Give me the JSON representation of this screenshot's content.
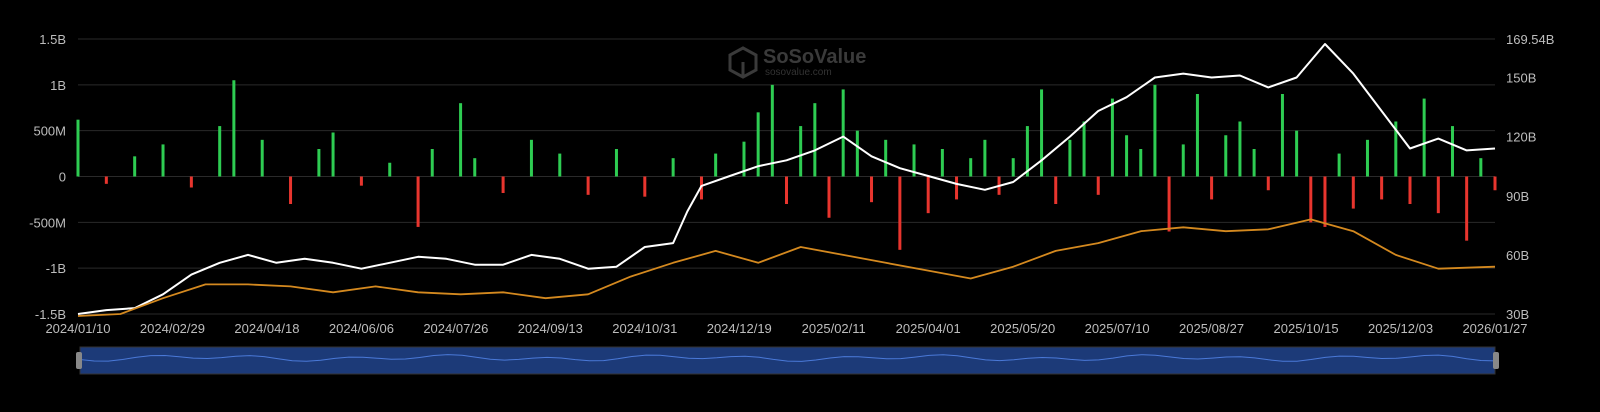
{
  "chart_data": {
    "type": "bar",
    "watermark": {
      "brand": "SoSoValue",
      "site": "sosovalue.com"
    },
    "x_tick_labels": [
      "2024/01/10",
      "2024/02/29",
      "2024/04/18",
      "2024/06/06",
      "2024/07/26",
      "2024/09/13",
      "2024/10/31",
      "2024/12/19",
      "2025/02/11",
      "2025/04/01",
      "2025/05/20",
      "2025/07/10",
      "2025/08/27",
      "2025/10/15",
      "2025/12/03",
      "2026/01/27"
    ],
    "y_left": {
      "ticks": [
        "1.5B",
        "1B",
        "500M",
        "0",
        "-500M",
        "-1B",
        "-1.5B"
      ],
      "values": [
        1.5,
        1.0,
        0.5,
        0,
        -0.5,
        -1.0,
        -1.5
      ],
      "unit": "B USD",
      "range": [
        -1.5,
        1.5
      ]
    },
    "y_right": {
      "ticks": [
        "169.54B",
        "150B",
        "120B",
        "90B",
        "60B",
        "30B"
      ],
      "values": [
        169.54,
        150,
        120,
        90,
        60,
        30
      ],
      "unit": "B USD",
      "range": [
        30,
        169.54
      ]
    },
    "series": [
      {
        "kind": "bar",
        "axis": "left",
        "color_pos": "#2ecc52",
        "color_neg": "#e8352e",
        "bars": [
          {
            "x": 0.0,
            "v": 0.62
          },
          {
            "x": 0.02,
            "v": -0.08
          },
          {
            "x": 0.04,
            "v": 0.22
          },
          {
            "x": 0.06,
            "v": 0.35
          },
          {
            "x": 0.08,
            "v": -0.12
          },
          {
            "x": 0.1,
            "v": 0.55
          },
          {
            "x": 0.11,
            "v": 1.05
          },
          {
            "x": 0.13,
            "v": 0.4
          },
          {
            "x": 0.15,
            "v": -0.3
          },
          {
            "x": 0.17,
            "v": 0.3
          },
          {
            "x": 0.18,
            "v": 0.48
          },
          {
            "x": 0.2,
            "v": -0.1
          },
          {
            "x": 0.22,
            "v": 0.15
          },
          {
            "x": 0.24,
            "v": -0.55
          },
          {
            "x": 0.25,
            "v": 0.3
          },
          {
            "x": 0.27,
            "v": 0.8
          },
          {
            "x": 0.28,
            "v": 0.2
          },
          {
            "x": 0.3,
            "v": -0.18
          },
          {
            "x": 0.32,
            "v": 0.4
          },
          {
            "x": 0.34,
            "v": 0.25
          },
          {
            "x": 0.36,
            "v": -0.2
          },
          {
            "x": 0.38,
            "v": 0.3
          },
          {
            "x": 0.4,
            "v": -0.22
          },
          {
            "x": 0.42,
            "v": 0.2
          },
          {
            "x": 0.44,
            "v": -0.25
          },
          {
            "x": 0.45,
            "v": 0.25
          },
          {
            "x": 0.47,
            "v": 0.38
          },
          {
            "x": 0.48,
            "v": 0.7
          },
          {
            "x": 0.49,
            "v": 1.0
          },
          {
            "x": 0.5,
            "v": -0.3
          },
          {
            "x": 0.51,
            "v": 0.55
          },
          {
            "x": 0.52,
            "v": 0.8
          },
          {
            "x": 0.53,
            "v": -0.45
          },
          {
            "x": 0.54,
            "v": 0.95
          },
          {
            "x": 0.55,
            "v": 0.5
          },
          {
            "x": 0.56,
            "v": -0.28
          },
          {
            "x": 0.57,
            "v": 0.4
          },
          {
            "x": 0.58,
            "v": -0.8
          },
          {
            "x": 0.59,
            "v": 0.35
          },
          {
            "x": 0.6,
            "v": -0.4
          },
          {
            "x": 0.61,
            "v": 0.3
          },
          {
            "x": 0.62,
            "v": -0.25
          },
          {
            "x": 0.63,
            "v": 0.2
          },
          {
            "x": 0.64,
            "v": 0.4
          },
          {
            "x": 0.65,
            "v": -0.2
          },
          {
            "x": 0.66,
            "v": 0.2
          },
          {
            "x": 0.67,
            "v": 0.55
          },
          {
            "x": 0.68,
            "v": 0.95
          },
          {
            "x": 0.69,
            "v": -0.3
          },
          {
            "x": 0.7,
            "v": 0.4
          },
          {
            "x": 0.71,
            "v": 0.6
          },
          {
            "x": 0.72,
            "v": -0.2
          },
          {
            "x": 0.73,
            "v": 0.85
          },
          {
            "x": 0.74,
            "v": 0.45
          },
          {
            "x": 0.75,
            "v": 0.3
          },
          {
            "x": 0.76,
            "v": 1.0
          },
          {
            "x": 0.77,
            "v": -0.6
          },
          {
            "x": 0.78,
            "v": 0.35
          },
          {
            "x": 0.79,
            "v": 0.9
          },
          {
            "x": 0.8,
            "v": -0.25
          },
          {
            "x": 0.81,
            "v": 0.45
          },
          {
            "x": 0.82,
            "v": 0.6
          },
          {
            "x": 0.83,
            "v": 0.3
          },
          {
            "x": 0.84,
            "v": -0.15
          },
          {
            "x": 0.85,
            "v": 0.9
          },
          {
            "x": 0.86,
            "v": 0.5
          },
          {
            "x": 0.87,
            "v": -0.5
          },
          {
            "x": 0.88,
            "v": -0.55
          },
          {
            "x": 0.89,
            "v": 0.25
          },
          {
            "x": 0.9,
            "v": -0.35
          },
          {
            "x": 0.91,
            "v": 0.4
          },
          {
            "x": 0.92,
            "v": -0.25
          },
          {
            "x": 0.93,
            "v": 0.6
          },
          {
            "x": 0.94,
            "v": -0.3
          },
          {
            "x": 0.95,
            "v": 0.85
          },
          {
            "x": 0.96,
            "v": -0.4
          },
          {
            "x": 0.97,
            "v": 0.55
          },
          {
            "x": 0.98,
            "v": -0.7
          },
          {
            "x": 0.99,
            "v": 0.2
          },
          {
            "x": 1.0,
            "v": -0.15
          }
        ]
      },
      {
        "kind": "line",
        "axis": "right",
        "color": "#ffffff",
        "points": [
          {
            "x": 0.0,
            "y": 30
          },
          {
            "x": 0.02,
            "y": 32
          },
          {
            "x": 0.04,
            "y": 33
          },
          {
            "x": 0.06,
            "y": 40
          },
          {
            "x": 0.08,
            "y": 50
          },
          {
            "x": 0.1,
            "y": 56
          },
          {
            "x": 0.12,
            "y": 60
          },
          {
            "x": 0.14,
            "y": 56
          },
          {
            "x": 0.16,
            "y": 58
          },
          {
            "x": 0.18,
            "y": 56
          },
          {
            "x": 0.2,
            "y": 53
          },
          {
            "x": 0.22,
            "y": 56
          },
          {
            "x": 0.24,
            "y": 59
          },
          {
            "x": 0.26,
            "y": 58
          },
          {
            "x": 0.28,
            "y": 55
          },
          {
            "x": 0.3,
            "y": 55
          },
          {
            "x": 0.32,
            "y": 60
          },
          {
            "x": 0.34,
            "y": 58
          },
          {
            "x": 0.36,
            "y": 53
          },
          {
            "x": 0.38,
            "y": 54
          },
          {
            "x": 0.4,
            "y": 64
          },
          {
            "x": 0.42,
            "y": 66
          },
          {
            "x": 0.43,
            "y": 82
          },
          {
            "x": 0.44,
            "y": 95
          },
          {
            "x": 0.46,
            "y": 100
          },
          {
            "x": 0.48,
            "y": 105
          },
          {
            "x": 0.5,
            "y": 108
          },
          {
            "x": 0.52,
            "y": 113
          },
          {
            "x": 0.54,
            "y": 120
          },
          {
            "x": 0.56,
            "y": 110
          },
          {
            "x": 0.58,
            "y": 104
          },
          {
            "x": 0.6,
            "y": 100
          },
          {
            "x": 0.62,
            "y": 96
          },
          {
            "x": 0.64,
            "y": 93
          },
          {
            "x": 0.66,
            "y": 97
          },
          {
            "x": 0.68,
            "y": 108
          },
          {
            "x": 0.7,
            "y": 120
          },
          {
            "x": 0.72,
            "y": 133
          },
          {
            "x": 0.74,
            "y": 140
          },
          {
            "x": 0.76,
            "y": 150
          },
          {
            "x": 0.78,
            "y": 152
          },
          {
            "x": 0.8,
            "y": 150
          },
          {
            "x": 0.82,
            "y": 151
          },
          {
            "x": 0.84,
            "y": 145
          },
          {
            "x": 0.86,
            "y": 150
          },
          {
            "x": 0.88,
            "y": 167
          },
          {
            "x": 0.9,
            "y": 152
          },
          {
            "x": 0.92,
            "y": 133
          },
          {
            "x": 0.94,
            "y": 114
          },
          {
            "x": 0.96,
            "y": 119
          },
          {
            "x": 0.98,
            "y": 113
          },
          {
            "x": 1.0,
            "y": 114
          }
        ]
      },
      {
        "kind": "line",
        "axis": "right",
        "color": "#d4891f",
        "points": [
          {
            "x": 0.0,
            "y": 29
          },
          {
            "x": 0.03,
            "y": 30
          },
          {
            "x": 0.06,
            "y": 38
          },
          {
            "x": 0.09,
            "y": 45
          },
          {
            "x": 0.12,
            "y": 45
          },
          {
            "x": 0.15,
            "y": 44
          },
          {
            "x": 0.18,
            "y": 41
          },
          {
            "x": 0.21,
            "y": 44
          },
          {
            "x": 0.24,
            "y": 41
          },
          {
            "x": 0.27,
            "y": 40
          },
          {
            "x": 0.3,
            "y": 41
          },
          {
            "x": 0.33,
            "y": 38
          },
          {
            "x": 0.36,
            "y": 40
          },
          {
            "x": 0.39,
            "y": 49
          },
          {
            "x": 0.42,
            "y": 56
          },
          {
            "x": 0.45,
            "y": 62
          },
          {
            "x": 0.48,
            "y": 56
          },
          {
            "x": 0.51,
            "y": 64
          },
          {
            "x": 0.54,
            "y": 60
          },
          {
            "x": 0.57,
            "y": 56
          },
          {
            "x": 0.6,
            "y": 52
          },
          {
            "x": 0.63,
            "y": 48
          },
          {
            "x": 0.66,
            "y": 54
          },
          {
            "x": 0.69,
            "y": 62
          },
          {
            "x": 0.72,
            "y": 66
          },
          {
            "x": 0.75,
            "y": 72
          },
          {
            "x": 0.78,
            "y": 74
          },
          {
            "x": 0.81,
            "y": 72
          },
          {
            "x": 0.84,
            "y": 73
          },
          {
            "x": 0.87,
            "y": 78
          },
          {
            "x": 0.9,
            "y": 72
          },
          {
            "x": 0.93,
            "y": 60
          },
          {
            "x": 0.96,
            "y": 53
          },
          {
            "x": 1.0,
            "y": 54
          }
        ]
      }
    ],
    "navigator": {
      "fill": "#1c3a78",
      "stroke": "#4a79d8"
    }
  }
}
